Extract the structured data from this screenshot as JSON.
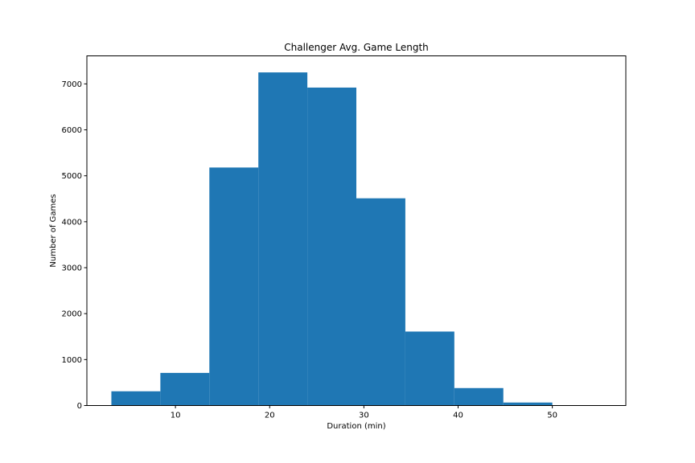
{
  "chart_data": {
    "type": "bar",
    "title": "Challenger Avg. Game Length",
    "xlabel": "Duration (min)",
    "ylabel": "Number of Games",
    "bin_edges": [
      3.2,
      8.4,
      13.6,
      18.8,
      24.0,
      29.2,
      34.4,
      39.6,
      44.8,
      50.0,
      55.2
    ],
    "values": [
      310,
      710,
      5180,
      7250,
      6920,
      4510,
      1610,
      380,
      65,
      5
    ],
    "xlim": [
      0.6,
      57.8
    ],
    "ylim": [
      0,
      7610
    ],
    "x_ticks": [
      10,
      20,
      30,
      40,
      50
    ],
    "y_ticks": [
      0,
      1000,
      2000,
      3000,
      4000,
      5000,
      6000,
      7000
    ],
    "bar_color": "#1f77b4",
    "grid": false
  }
}
